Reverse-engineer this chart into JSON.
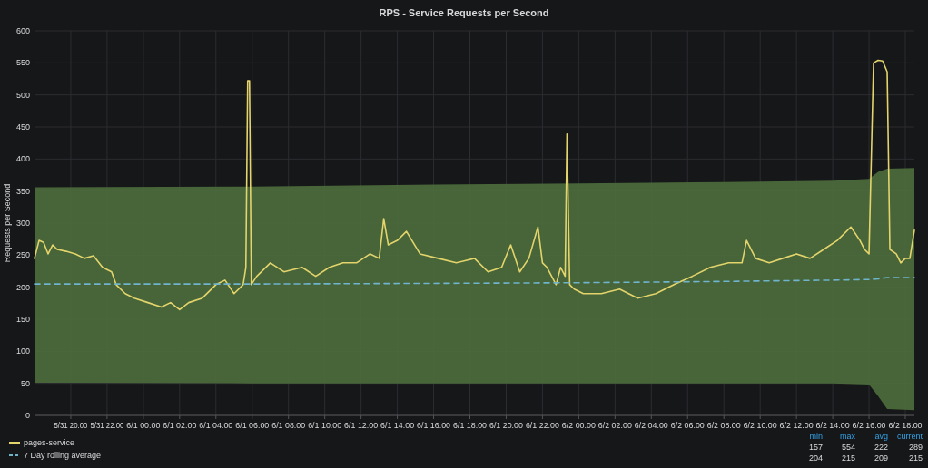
{
  "chart_data": {
    "type": "line",
    "title": "RPS - Service Requests per Second",
    "ylabel": "Requests per Second",
    "xlim": [
      "--05-31T18:00",
      "--06-02T18:30"
    ],
    "xticks": [
      {
        "value": "--05-31T20:00",
        "label": "5/31 20:00"
      },
      {
        "value": "--05-31T22:00",
        "label": "5/31 22:00"
      },
      {
        "value": "--06-01T00:00",
        "label": "6/1 00:00"
      },
      {
        "value": "--06-01T02:00",
        "label": "6/1 02:00"
      },
      {
        "value": "--06-01T04:00",
        "label": "6/1 04:00"
      },
      {
        "value": "--06-01T06:00",
        "label": "6/1 06:00"
      },
      {
        "value": "--06-01T08:00",
        "label": "6/1 08:00"
      },
      {
        "value": "--06-01T10:00",
        "label": "6/1 10:00"
      },
      {
        "value": "--06-01T12:00",
        "label": "6/1 12:00"
      },
      {
        "value": "--06-01T14:00",
        "label": "6/1 14:00"
      },
      {
        "value": "--06-01T16:00",
        "label": "6/1 16:00"
      },
      {
        "value": "--06-01T18:00",
        "label": "6/1 18:00"
      },
      {
        "value": "--06-01T20:00",
        "label": "6/1 20:00"
      },
      {
        "value": "--06-01T22:00",
        "label": "6/1 22:00"
      },
      {
        "value": "--06-02T00:00",
        "label": "6/2 00:00"
      },
      {
        "value": "--06-02T02:00",
        "label": "6/2 02:00"
      },
      {
        "value": "--06-02T04:00",
        "label": "6/2 04:00"
      },
      {
        "value": "--06-02T06:00",
        "label": "6/2 06:00"
      },
      {
        "value": "--06-02T08:00",
        "label": "6/2 08:00"
      },
      {
        "value": "--06-02T10:00",
        "label": "6/2 10:00"
      },
      {
        "value": "--06-02T12:00",
        "label": "6/2 12:00"
      },
      {
        "value": "--06-02T14:00",
        "label": "6/2 14:00"
      },
      {
        "value": "--06-02T16:00",
        "label": "6/2 16:00"
      },
      {
        "value": "--06-02T18:00",
        "label": "6/2 18:00"
      }
    ],
    "ylim": [
      0,
      600
    ],
    "yticks": [
      0,
      50,
      100,
      150,
      200,
      250,
      300,
      350,
      400,
      450,
      500,
      550,
      600
    ],
    "grid": true,
    "legend": "bottom left",
    "series": [
      {
        "name": "pages-service",
        "color": "#e3d46c",
        "line_style": "solid",
        "x": [
          "--05-31T18:00",
          "--05-31T18:15",
          "--05-31T18:30",
          "--05-31T18:45",
          "--05-31T19:00",
          "--05-31T19:15",
          "--05-31T19:45",
          "--05-31T20:15",
          "--05-31T20:45",
          "--05-31T21:15",
          "--05-31T21:45",
          "--05-31T22:15",
          "--05-31T22:30",
          "--05-31T23:00",
          "--05-31T23:30",
          "--06-01T00:15",
          "--06-01T01:00",
          "--06-01T01:30",
          "--06-01T02:00",
          "--06-01T02:30",
          "--06-01T03:15",
          "--06-01T04:00",
          "--06-01T04:30",
          "--06-01T05:00",
          "--06-01T05:30",
          "--06-01T05:39",
          "--06-01T05:45",
          "--06-01T05:51",
          "--06-01T05:57",
          "--06-01T06:15",
          "--06-01T07:00",
          "--06-01T07:45",
          "--06-01T08:45",
          "--06-01T09:30",
          "--06-01T10:15",
          "--06-01T11:00",
          "--06-01T11:45",
          "--06-01T12:30",
          "--06-01T13:00",
          "--06-01T13:15",
          "--06-01T13:30",
          "--06-01T14:00",
          "--06-01T14:30",
          "--06-01T15:15",
          "--06-01T16:15",
          "--06-01T17:15",
          "--06-01T18:15",
          "--06-01T19:00",
          "--06-01T19:45",
          "--06-01T20:15",
          "--06-01T20:45",
          "--06-01T21:15",
          "--06-01T21:45",
          "--06-01T22:00",
          "--06-01T22:15",
          "--06-01T22:45",
          "--06-01T23:00",
          "--06-01T23:15",
          "--06-01T23:21",
          "--06-01T23:30",
          "--06-01T23:45",
          "--06-02T00:15",
          "--06-02T01:15",
          "--06-02T02:15",
          "--06-02T03:15",
          "--06-02T04:15",
          "--06-02T05:15",
          "--06-02T06:15",
          "--06-02T07:15",
          "--06-02T08:15",
          "--06-02T09:00",
          "--06-02T09:15",
          "--06-02T09:45",
          "--06-02T10:30",
          "--06-02T11:15",
          "--06-02T12:00",
          "--06-02T12:45",
          "--06-02T13:30",
          "--06-02T14:15",
          "--06-02T15:00",
          "--06-02T15:30",
          "--06-02T15:45",
          "--06-02T16:00",
          "--06-02T16:15",
          "--06-02T16:30",
          "--06-02T16:45",
          "--06-02T17:00",
          "--06-02T17:09",
          "--06-02T17:30",
          "--06-02T17:45",
          "--06-02T18:00",
          "--06-02T18:15",
          "--06-02T18:30"
        ],
        "values": [
          245,
          273,
          270,
          252,
          266,
          259,
          256,
          252,
          245,
          249,
          231,
          224,
          204,
          190,
          183,
          176,
          169,
          176,
          165,
          176,
          183,
          204,
          211,
          190,
          204,
          231,
          522,
          522,
          204,
          217,
          238,
          224,
          231,
          217,
          231,
          238,
          238,
          252,
          245,
          307,
          266,
          273,
          287,
          252,
          245,
          238,
          245,
          224,
          231,
          266,
          224,
          245,
          294,
          238,
          231,
          204,
          231,
          217,
          439,
          204,
          197,
          190,
          190,
          197,
          183,
          190,
          204,
          217,
          231,
          238,
          238,
          273,
          245,
          238,
          245,
          252,
          245,
          259,
          273,
          294,
          273,
          259,
          252,
          550,
          554,
          553,
          536,
          259,
          252,
          238,
          245,
          245,
          289
        ]
      },
      {
        "name": "7 Day rolling average",
        "color": "#6fb3cc",
        "line_style": "dashed",
        "x": [
          "--05-31T18:00",
          "--06-01T06:00",
          "--06-01T16:00",
          "--06-02T00:00",
          "--06-02T08:00",
          "--06-02T14:00",
          "--06-02T16:00",
          "--06-02T16:30",
          "--06-02T17:00",
          "--06-02T18:30"
        ],
        "values": [
          205,
          205,
          206,
          207,
          209,
          211,
          212,
          213,
          215,
          215
        ],
        "lower": [
          51,
          50,
          50,
          50,
          50,
          50,
          48,
          30,
          10,
          8
        ],
        "upper": [
          356,
          357,
          360,
          362,
          364,
          366,
          369,
          380,
          385,
          386
        ]
      }
    ],
    "annotations": [
      "min",
      "max",
      "avg",
      "current",
      "157",
      "554",
      "222",
      "289",
      "204",
      "215",
      "209",
      "215"
    ]
  }
}
